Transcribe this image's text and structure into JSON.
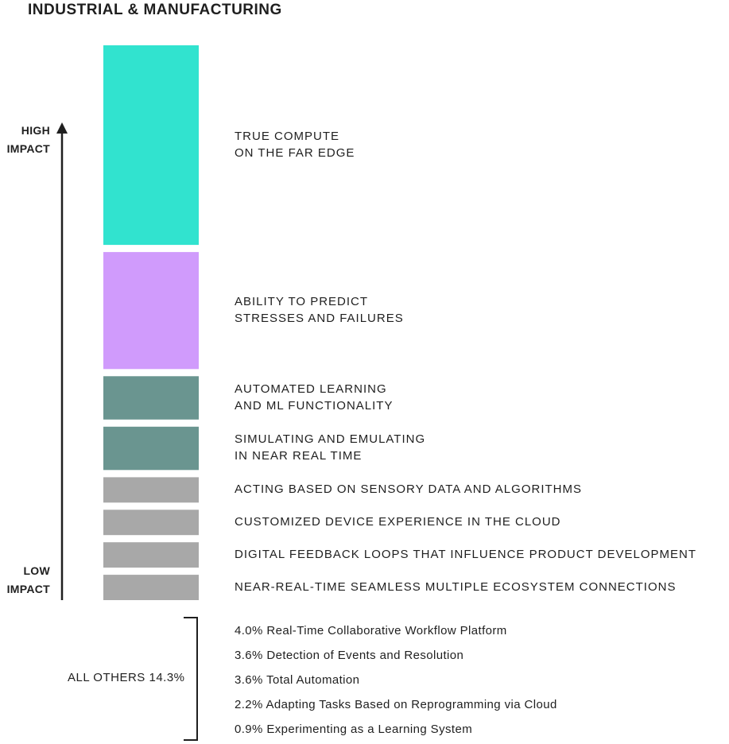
{
  "title": "INDUSTRIAL & MANUFACTURING",
  "axis": {
    "high_label_line1": "HIGH",
    "high_label_line2": "IMPACT",
    "low_label_line1": "LOW",
    "low_label_line2": "IMPACT"
  },
  "chart_data": {
    "type": "bar",
    "categories": [
      "TRUE COMPUTE\nON THE FAR EDGE",
      "ABILITY TO PREDICT\nSTRESSES AND FAILURES",
      "AUTOMATED LEARNING\nAND ML FUNCTIONALITY",
      "SIMULATING AND EMULATING\nIN NEAR REAL TIME",
      "ACTING BASED ON SENSORY DATA AND ALGORITHMS",
      "CUSTOMIZED DEVICE EXPERIENCE IN THE CLOUD",
      "DIGITAL FEEDBACK LOOPS THAT INFLUENCE PRODUCT DEVELOPMENT",
      "NEAR-REAL-TIME SEAMLESS MULTIPLE ECOSYSTEM CONNECTIONS"
    ],
    "values": [
      24.4,
      14.3,
      5.3,
      5.3,
      3.1,
      3.1,
      3.1,
      3.1
    ],
    "colors": [
      "#31e3cf",
      "#d09bfc",
      "#6a9590",
      "#6a9590",
      "#a8a8a8",
      "#a8a8a8",
      "#a8a8a8",
      "#a8a8a8"
    ],
    "orientation": "stacked-vertical"
  },
  "others": {
    "label": "ALL OTHERS 14.3%",
    "items": [
      "4.0% Real-Time Collaborative Workflow Platform",
      "3.6% Detection of Events and Resolution",
      "3.6% Total Automation",
      "2.2% Adapting Tasks Based on Reprogramming via Cloud",
      "0.9% Experimenting as a Learning System"
    ]
  }
}
